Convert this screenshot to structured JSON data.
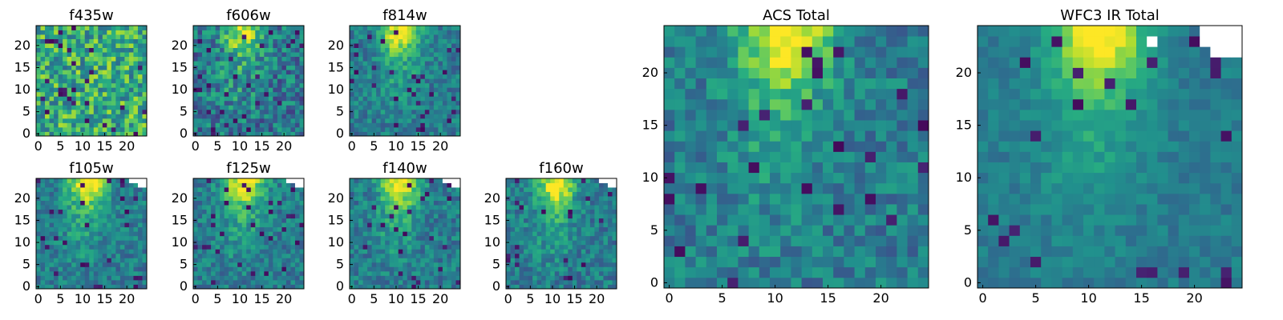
{
  "figure": {
    "colors": {
      "viridis": [
        "#440154",
        "#472c7a",
        "#3b518b",
        "#2c718e",
        "#21908d",
        "#27ad81",
        "#5cc863",
        "#aadc32",
        "#fde725"
      ],
      "axis": "#000000",
      "missing": "#ffffff"
    }
  },
  "chart_data": [
    {
      "id": "f435w",
      "type": "heatmap",
      "title": "f435w",
      "grid_size": 25,
      "xlim": [
        0,
        24
      ],
      "ylim": [
        0,
        24
      ],
      "xticks": [
        0,
        5,
        10,
        15,
        20
      ],
      "yticks": [
        0,
        5,
        10,
        15,
        20
      ],
      "pattern": "noise",
      "seed": 11
    },
    {
      "id": "f606w",
      "type": "heatmap",
      "title": "f606w",
      "grid_size": 25,
      "xlim": [
        0,
        24
      ],
      "ylim": [
        0,
        24
      ],
      "xticks": [
        0,
        5,
        10,
        15,
        20
      ],
      "yticks": [
        0,
        5,
        10,
        15,
        20
      ],
      "pattern": "ridge-weak",
      "seed": 23
    },
    {
      "id": "f814w",
      "type": "heatmap",
      "title": "f814w",
      "grid_size": 25,
      "xlim": [
        0,
        24
      ],
      "ylim": [
        0,
        24
      ],
      "xticks": [
        0,
        5,
        10,
        15,
        20
      ],
      "yticks": [
        0,
        5,
        10,
        15,
        20
      ],
      "pattern": "ridge",
      "seed": 37
    },
    {
      "id": "f105w",
      "type": "heatmap",
      "title": "f105w",
      "grid_size": 25,
      "xlim": [
        0,
        24
      ],
      "ylim": [
        0,
        24
      ],
      "xticks": [
        0,
        5,
        10,
        15,
        20
      ],
      "yticks": [
        0,
        5,
        10,
        15,
        20
      ],
      "pattern": "ridge",
      "seed": 41,
      "missing_corner": "top-right"
    },
    {
      "id": "f125w",
      "type": "heatmap",
      "title": "f125w",
      "grid_size": 25,
      "xlim": [
        0,
        24
      ],
      "ylim": [
        0,
        24
      ],
      "xticks": [
        0,
        5,
        10,
        15,
        20
      ],
      "yticks": [
        0,
        5,
        10,
        15,
        20
      ],
      "pattern": "ridge",
      "seed": 53,
      "missing_corner": "top-right"
    },
    {
      "id": "f140w",
      "type": "heatmap",
      "title": "f140w",
      "grid_size": 25,
      "xlim": [
        0,
        24
      ],
      "ylim": [
        0,
        24
      ],
      "xticks": [
        0,
        5,
        10,
        15,
        20
      ],
      "yticks": [
        0,
        5,
        10,
        15,
        20
      ],
      "pattern": "ridge",
      "seed": 67,
      "missing_corner": "top-right"
    },
    {
      "id": "f160w",
      "type": "heatmap",
      "title": "f160w",
      "grid_size": 25,
      "xlim": [
        0,
        24
      ],
      "ylim": [
        0,
        24
      ],
      "xticks": [
        0,
        5,
        10,
        15,
        20
      ],
      "yticks": [
        0,
        5,
        10,
        15,
        20
      ],
      "pattern": "ridge",
      "seed": 79,
      "missing_corner": "top-right"
    },
    {
      "id": "acs_total",
      "type": "heatmap",
      "title": "ACS Total",
      "grid_size": 25,
      "xlim": [
        0,
        24
      ],
      "ylim": [
        0,
        24
      ],
      "xticks": [
        0,
        5,
        10,
        15,
        20
      ],
      "yticks": [
        0,
        5,
        10,
        15,
        20
      ],
      "pattern": "ridge",
      "seed": 97
    },
    {
      "id": "wfc3_ir_total",
      "type": "heatmap",
      "title": "WFC3 IR Total",
      "grid_size": 25,
      "xlim": [
        0,
        24
      ],
      "ylim": [
        0,
        24
      ],
      "xticks": [
        0,
        5,
        10,
        15,
        20
      ],
      "yticks": [
        0,
        5,
        10,
        15,
        20
      ],
      "pattern": "ridge-smooth",
      "seed": 131,
      "missing_corner": "top-right"
    }
  ]
}
